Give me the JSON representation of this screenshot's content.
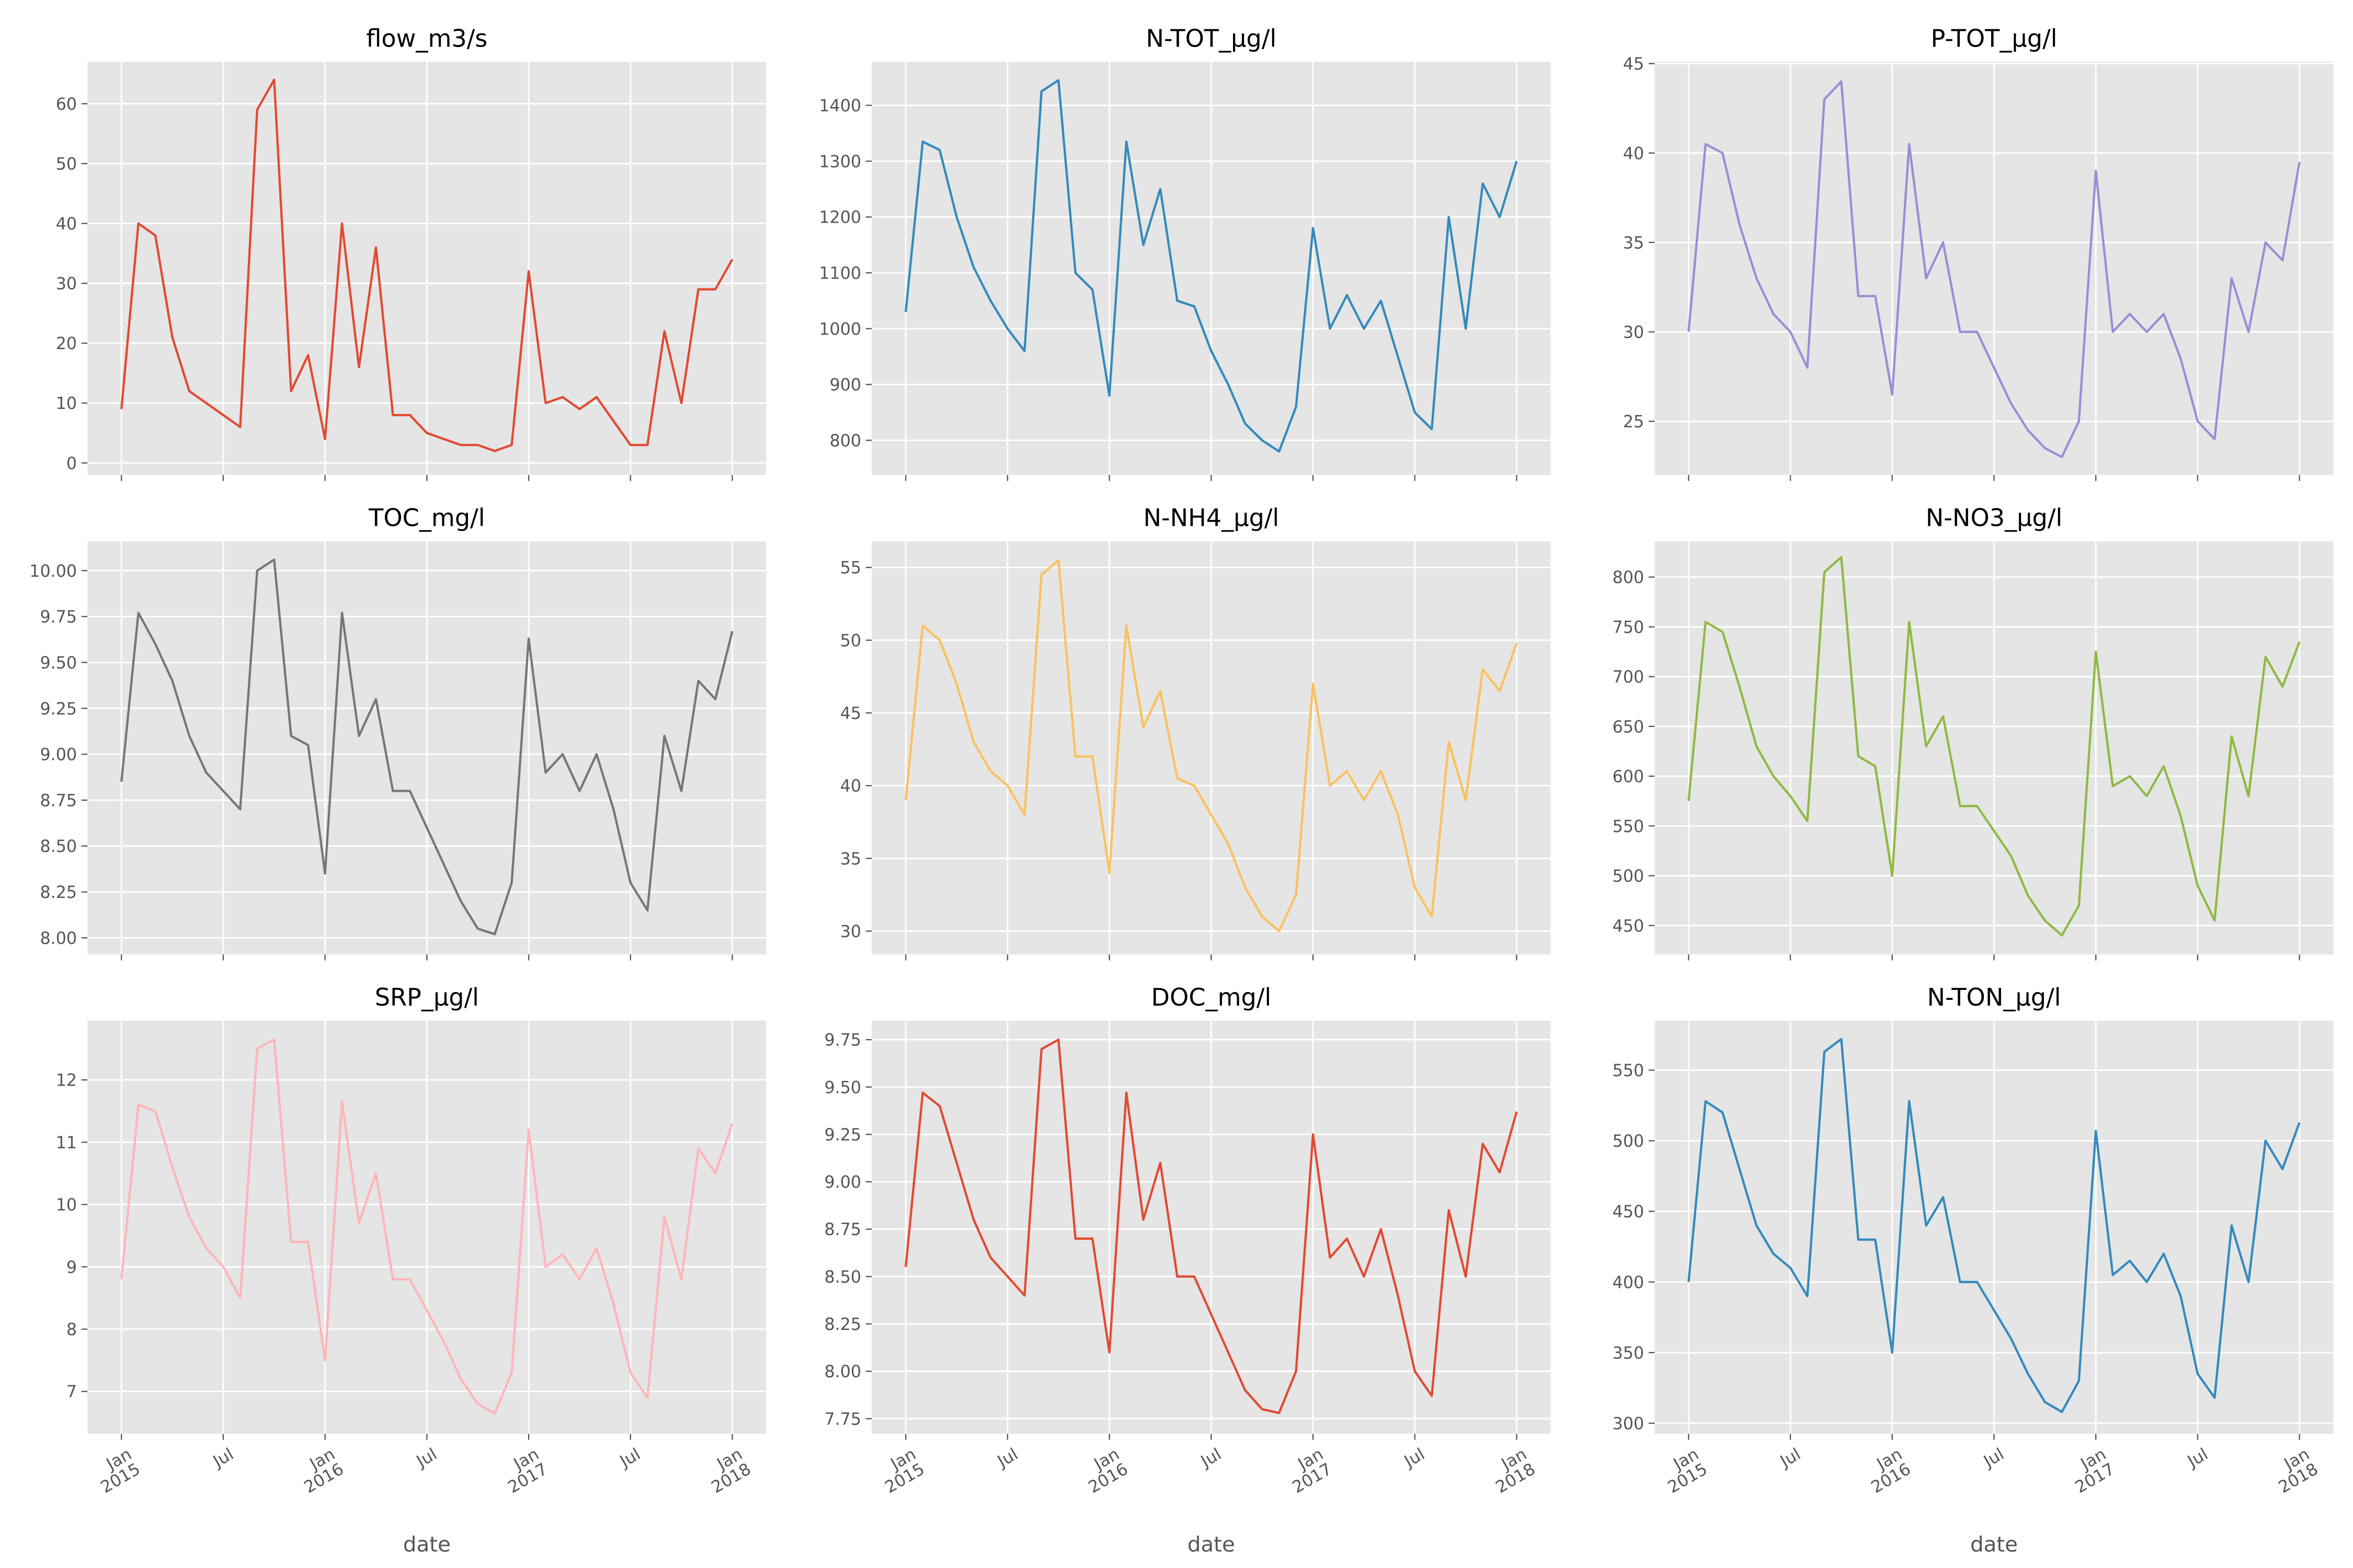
{
  "chart_data": [
    {
      "type": "line",
      "title": "flow_m3/s",
      "color": "#E24A33",
      "grid": true,
      "x": [
        "2015-01",
        "2015-02",
        "2015-03",
        "2015-04",
        "2015-05",
        "2015-06",
        "2015-07",
        "2015-08",
        "2015-09",
        "2015-10",
        "2015-11",
        "2015-12",
        "2016-01",
        "2016-02",
        "2016-03",
        "2016-04",
        "2016-05",
        "2016-06",
        "2016-07",
        "2016-08",
        "2016-09",
        "2016-10",
        "2016-11",
        "2016-12",
        "2017-01",
        "2017-02",
        "2017-03",
        "2017-04",
        "2017-05",
        "2017-06",
        "2017-07",
        "2017-08",
        "2017-09",
        "2017-10",
        "2017-11",
        "2017-12",
        "2018-01"
      ],
      "values": [
        9,
        40,
        38,
        21,
        12,
        10,
        8,
        6,
        59,
        64,
        12,
        18,
        4,
        40,
        16,
        36,
        8,
        8,
        5,
        4,
        3,
        3,
        2,
        3,
        32,
        10,
        11,
        9,
        11,
        7,
        3,
        3,
        22,
        10,
        29,
        29,
        34
      ],
      "xlim": [
        "2014-11",
        "2018-03"
      ],
      "xticks": [
        "2015-01",
        "2015-07",
        "2016-01",
        "2016-07",
        "2017-01",
        "2017-07",
        "2018-01"
      ],
      "ylim": [
        -2,
        67
      ],
      "yticks": [
        0,
        10,
        20,
        30,
        40,
        50,
        60
      ]
    },
    {
      "type": "line",
      "title": "N-TOT_µg/l",
      "color": "#348ABD",
      "grid": true,
      "x": [
        "2015-01",
        "2015-02",
        "2015-03",
        "2015-04",
        "2015-05",
        "2015-06",
        "2015-07",
        "2015-08",
        "2015-09",
        "2015-10",
        "2015-11",
        "2015-12",
        "2016-01",
        "2016-02",
        "2016-03",
        "2016-04",
        "2016-05",
        "2016-06",
        "2016-07",
        "2016-08",
        "2016-09",
        "2016-10",
        "2016-11",
        "2016-12",
        "2017-01",
        "2017-02",
        "2017-03",
        "2017-04",
        "2017-05",
        "2017-06",
        "2017-07",
        "2017-08",
        "2017-09",
        "2017-10",
        "2017-11",
        "2017-12",
        "2018-01"
      ],
      "values": [
        1030,
        1335,
        1320,
        1200,
        1110,
        1050,
        1000,
        960,
        1425,
        1445,
        1100,
        1070,
        880,
        1335,
        1150,
        1250,
        1050,
        1040,
        960,
        900,
        830,
        800,
        780,
        860,
        1180,
        1000,
        1060,
        1000,
        1050,
        950,
        850,
        820,
        1200,
        1000,
        1260,
        1200,
        1300
      ],
      "xlim": [
        "2014-11",
        "2018-03"
      ],
      "xticks": [
        "2015-01",
        "2015-07",
        "2016-01",
        "2016-07",
        "2017-01",
        "2017-07",
        "2018-01"
      ],
      "ylim": [
        738,
        1478
      ],
      "yticks": [
        800,
        900,
        1000,
        1100,
        1200,
        1300,
        1400
      ]
    },
    {
      "type": "line",
      "title": "P-TOT_µg/l",
      "color": "#988ED5",
      "grid": true,
      "x": [
        "2015-01",
        "2015-02",
        "2015-03",
        "2015-04",
        "2015-05",
        "2015-06",
        "2015-07",
        "2015-08",
        "2015-09",
        "2015-10",
        "2015-11",
        "2015-12",
        "2016-01",
        "2016-02",
        "2016-03",
        "2016-04",
        "2016-05",
        "2016-06",
        "2016-07",
        "2016-08",
        "2016-09",
        "2016-10",
        "2016-11",
        "2016-12",
        "2017-01",
        "2017-02",
        "2017-03",
        "2017-04",
        "2017-05",
        "2017-06",
        "2017-07",
        "2017-08",
        "2017-09",
        "2017-10",
        "2017-11",
        "2017-12",
        "2018-01"
      ],
      "values": [
        30,
        40.5,
        40,
        36,
        33,
        31,
        30,
        28,
        43,
        44,
        32,
        32,
        26.5,
        40.5,
        33,
        35,
        30,
        30,
        28,
        26,
        24.5,
        23.5,
        23,
        25,
        39,
        30,
        31,
        30,
        31,
        28.5,
        25,
        24,
        33,
        30,
        35,
        34,
        39.5
      ],
      "xlim": [
        "2014-11",
        "2018-03"
      ],
      "xticks": [
        "2015-01",
        "2015-07",
        "2016-01",
        "2016-07",
        "2017-01",
        "2017-07",
        "2018-01"
      ],
      "ylim": [
        22,
        45.1
      ],
      "yticks": [
        25,
        30,
        35,
        40,
        45
      ]
    },
    {
      "type": "line",
      "title": "TOC_mg/l",
      "color": "#777777",
      "grid": true,
      "x": [
        "2015-01",
        "2015-02",
        "2015-03",
        "2015-04",
        "2015-05",
        "2015-06",
        "2015-07",
        "2015-08",
        "2015-09",
        "2015-10",
        "2015-11",
        "2015-12",
        "2016-01",
        "2016-02",
        "2016-03",
        "2016-04",
        "2016-05",
        "2016-06",
        "2016-07",
        "2016-08",
        "2016-09",
        "2016-10",
        "2016-11",
        "2016-12",
        "2017-01",
        "2017-02",
        "2017-03",
        "2017-04",
        "2017-05",
        "2017-06",
        "2017-07",
        "2017-08",
        "2017-09",
        "2017-10",
        "2017-11",
        "2017-12",
        "2018-01"
      ],
      "values": [
        8.85,
        9.77,
        9.6,
        9.4,
        9.1,
        8.9,
        8.8,
        8.7,
        10.0,
        10.06,
        9.1,
        9.05,
        8.35,
        9.77,
        9.1,
        9.3,
        8.8,
        8.8,
        8.6,
        8.4,
        8.2,
        8.05,
        8.02,
        8.3,
        9.63,
        8.9,
        9.0,
        8.8,
        9.0,
        8.7,
        8.3,
        8.15,
        9.1,
        8.8,
        9.4,
        9.3,
        9.67
      ],
      "xlim": [
        "2014-11",
        "2018-03"
      ],
      "xticks": [
        "2015-01",
        "2015-07",
        "2016-01",
        "2016-07",
        "2017-01",
        "2017-07",
        "2018-01"
      ],
      "ylim": [
        7.91,
        10.16
      ],
      "yticks": [
        {
          "value": 8,
          "label": "8.00"
        },
        8.25,
        {
          "value": 8.5,
          "label": "8.50"
        },
        8.75,
        {
          "value": 9,
          "label": "9.00"
        },
        9.25,
        {
          "value": 9.5,
          "label": "9.50"
        },
        9.75,
        {
          "value": 10,
          "label": "10.00"
        }
      ]
    },
    {
      "type": "line",
      "title": "N-NH4_µg/l",
      "color": "#FBC15E",
      "grid": true,
      "x": [
        "2015-01",
        "2015-02",
        "2015-03",
        "2015-04",
        "2015-05",
        "2015-06",
        "2015-07",
        "2015-08",
        "2015-09",
        "2015-10",
        "2015-11",
        "2015-12",
        "2016-01",
        "2016-02",
        "2016-03",
        "2016-04",
        "2016-05",
        "2016-06",
        "2016-07",
        "2016-08",
        "2016-09",
        "2016-10",
        "2016-11",
        "2016-12",
        "2017-01",
        "2017-02",
        "2017-03",
        "2017-04",
        "2017-05",
        "2017-06",
        "2017-07",
        "2017-08",
        "2017-09",
        "2017-10",
        "2017-11",
        "2017-12",
        "2018-01"
      ],
      "values": [
        39,
        51,
        50,
        47,
        43,
        41,
        40,
        38,
        54.5,
        55.5,
        42,
        42,
        34,
        51,
        44,
        46.5,
        40.5,
        40,
        38,
        36,
        33,
        31,
        30,
        32.5,
        47,
        40,
        41,
        39,
        41,
        38,
        33,
        31,
        43,
        39,
        48,
        46.5,
        49.8
      ],
      "xlim": [
        "2014-11",
        "2018-03"
      ],
      "xticks": [
        "2015-01",
        "2015-07",
        "2016-01",
        "2016-07",
        "2017-01",
        "2017-07",
        "2018-01"
      ],
      "ylim": [
        28.4,
        56.8
      ],
      "yticks": [
        30,
        35,
        40,
        45,
        50,
        55
      ]
    },
    {
      "type": "line",
      "title": "N-NO3_µg/l",
      "color": "#8EBA42",
      "grid": true,
      "x": [
        "2015-01",
        "2015-02",
        "2015-03",
        "2015-04",
        "2015-05",
        "2015-06",
        "2015-07",
        "2015-08",
        "2015-09",
        "2015-10",
        "2015-11",
        "2015-12",
        "2016-01",
        "2016-02",
        "2016-03",
        "2016-04",
        "2016-05",
        "2016-06",
        "2016-07",
        "2016-08",
        "2016-09",
        "2016-10",
        "2016-11",
        "2016-12",
        "2017-01",
        "2017-02",
        "2017-03",
        "2017-04",
        "2017-05",
        "2017-06",
        "2017-07",
        "2017-08",
        "2017-09",
        "2017-10",
        "2017-11",
        "2017-12",
        "2018-01"
      ],
      "values": [
        575,
        755,
        745,
        690,
        630,
        600,
        580,
        555,
        805,
        820,
        620,
        610,
        500,
        755,
        630,
        660,
        570,
        570,
        545,
        520,
        480,
        455,
        440,
        470,
        725,
        590,
        600,
        580,
        610,
        560,
        490,
        455,
        640,
        580,
        720,
        690,
        735
      ],
      "xlim": [
        "2014-11",
        "2018-03"
      ],
      "xticks": [
        "2015-01",
        "2015-07",
        "2016-01",
        "2016-07",
        "2017-01",
        "2017-07",
        "2018-01"
      ],
      "ylim": [
        421,
        836
      ],
      "yticks": [
        450,
        500,
        550,
        600,
        650,
        700,
        750,
        800
      ]
    },
    {
      "type": "line",
      "title": "SRP_µg/l",
      "color": "#FFB5B8",
      "grid": true,
      "xlabel": "date",
      "x": [
        "2015-01",
        "2015-02",
        "2015-03",
        "2015-04",
        "2015-05",
        "2015-06",
        "2015-07",
        "2015-08",
        "2015-09",
        "2015-10",
        "2015-11",
        "2015-12",
        "2016-01",
        "2016-02",
        "2016-03",
        "2016-04",
        "2016-05",
        "2016-06",
        "2016-07",
        "2016-08",
        "2016-09",
        "2016-10",
        "2016-11",
        "2016-12",
        "2017-01",
        "2017-02",
        "2017-03",
        "2017-04",
        "2017-05",
        "2017-06",
        "2017-07",
        "2017-08",
        "2017-09",
        "2017-10",
        "2017-11",
        "2017-12",
        "2018-01"
      ],
      "values": [
        8.8,
        11.6,
        11.5,
        10.6,
        9.8,
        9.3,
        9.0,
        8.5,
        12.5,
        12.65,
        9.4,
        9.4,
        7.5,
        11.65,
        9.7,
        10.5,
        8.8,
        8.8,
        8.3,
        7.8,
        7.2,
        6.8,
        6.65,
        7.3,
        11.2,
        9.0,
        9.2,
        8.8,
        9.3,
        8.4,
        7.3,
        6.9,
        9.8,
        8.8,
        10.9,
        10.5,
        11.3
      ],
      "xlim": [
        "2014-11",
        "2018-03"
      ],
      "xticks": [
        {
          "value": "2015-01",
          "label": "Jan\n2015"
        },
        {
          "value": "2015-07",
          "label": "Jul"
        },
        {
          "value": "2016-01",
          "label": "Jan\n2016"
        },
        {
          "value": "2016-07",
          "label": "Jul"
        },
        {
          "value": "2017-01",
          "label": "Jan\n2017"
        },
        {
          "value": "2017-07",
          "label": "Jul"
        },
        {
          "value": "2018-01",
          "label": "Jan\n2018"
        }
      ],
      "ylim": [
        6.32,
        12.95
      ],
      "yticks": [
        7,
        8,
        9,
        10,
        11,
        12
      ]
    },
    {
      "type": "line",
      "title": "DOC_mg/l",
      "color": "#E24A33",
      "grid": true,
      "xlabel": "date",
      "x": [
        "2015-01",
        "2015-02",
        "2015-03",
        "2015-04",
        "2015-05",
        "2015-06",
        "2015-07",
        "2015-08",
        "2015-09",
        "2015-10",
        "2015-11",
        "2015-12",
        "2016-01",
        "2016-02",
        "2016-03",
        "2016-04",
        "2016-05",
        "2016-06",
        "2016-07",
        "2016-08",
        "2016-09",
        "2016-10",
        "2016-11",
        "2016-12",
        "2017-01",
        "2017-02",
        "2017-03",
        "2017-04",
        "2017-05",
        "2017-06",
        "2017-07",
        "2017-08",
        "2017-09",
        "2017-10",
        "2017-11",
        "2017-12",
        "2018-01"
      ],
      "values": [
        8.55,
        9.47,
        9.4,
        9.1,
        8.8,
        8.6,
        8.5,
        8.4,
        9.7,
        9.75,
        8.7,
        8.7,
        8.1,
        9.47,
        8.8,
        9.1,
        8.5,
        8.5,
        8.3,
        8.1,
        7.9,
        7.8,
        7.78,
        8.0,
        9.25,
        8.6,
        8.7,
        8.5,
        8.75,
        8.4,
        8.0,
        7.87,
        8.85,
        8.5,
        9.2,
        9.05,
        9.37
      ],
      "xlim": [
        "2014-11",
        "2018-03"
      ],
      "xticks": [
        {
          "value": "2015-01",
          "label": "Jan\n2015"
        },
        {
          "value": "2015-07",
          "label": "Jul"
        },
        {
          "value": "2016-01",
          "label": "Jan\n2016"
        },
        {
          "value": "2016-07",
          "label": "Jul"
        },
        {
          "value": "2017-01",
          "label": "Jan\n2017"
        },
        {
          "value": "2017-07",
          "label": "Jul"
        },
        {
          "value": "2018-01",
          "label": "Jan\n2018"
        }
      ],
      "ylim": [
        7.67,
        9.85
      ],
      "yticks": [
        7.75,
        {
          "value": 8,
          "label": "8.00"
        },
        8.25,
        {
          "value": 8.5,
          "label": "8.50"
        },
        8.75,
        {
          "value": 9,
          "label": "9.00"
        },
        9.25,
        {
          "value": 9.5,
          "label": "9.50"
        },
        9.75
      ]
    },
    {
      "type": "line",
      "title": "N-TON_µg/l",
      "color": "#348ABD",
      "grid": true,
      "xlabel": "date",
      "x": [
        "2015-01",
        "2015-02",
        "2015-03",
        "2015-04",
        "2015-05",
        "2015-06",
        "2015-07",
        "2015-08",
        "2015-09",
        "2015-10",
        "2015-11",
        "2015-12",
        "2016-01",
        "2016-02",
        "2016-03",
        "2016-04",
        "2016-05",
        "2016-06",
        "2016-07",
        "2016-08",
        "2016-09",
        "2016-10",
        "2016-11",
        "2016-12",
        "2017-01",
        "2017-02",
        "2017-03",
        "2017-04",
        "2017-05",
        "2017-06",
        "2017-07",
        "2017-08",
        "2017-09",
        "2017-10",
        "2017-11",
        "2017-12",
        "2018-01"
      ],
      "values": [
        400,
        528,
        520,
        480,
        440,
        420,
        410,
        390,
        563,
        572,
        430,
        430,
        350,
        528,
        440,
        460,
        400,
        400,
        380,
        360,
        335,
        315,
        308,
        330,
        507,
        405,
        415,
        400,
        420,
        390,
        335,
        318,
        440,
        400,
        500,
        480,
        513
      ],
      "xlim": [
        "2014-11",
        "2018-03"
      ],
      "xticks": [
        {
          "value": "2015-01",
          "label": "Jan\n2015"
        },
        {
          "value": "2015-07",
          "label": "Jul"
        },
        {
          "value": "2016-01",
          "label": "Jan\n2016"
        },
        {
          "value": "2016-07",
          "label": "Jul"
        },
        {
          "value": "2017-01",
          "label": "Jan\n2017"
        },
        {
          "value": "2017-07",
          "label": "Jul"
        },
        {
          "value": "2018-01",
          "label": "Jan\n2018"
        }
      ],
      "ylim": [
        292.5,
        585
      ],
      "yticks": [
        300,
        350,
        400,
        450,
        500,
        550
      ]
    }
  ]
}
